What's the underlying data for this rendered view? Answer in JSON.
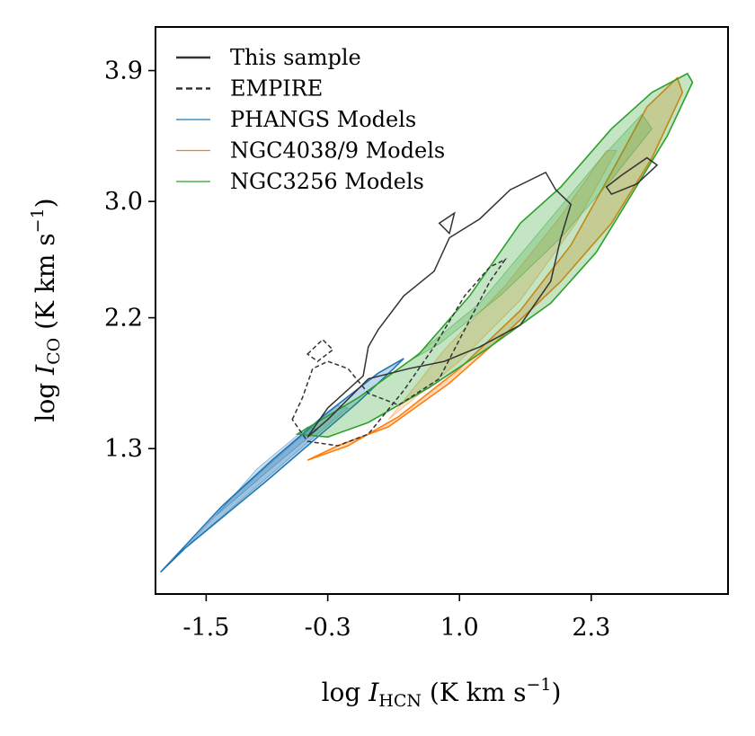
{
  "chart_data": {
    "type": "contour",
    "xlabel": "log I_HCN (K km s^-1)",
    "ylabel": "log I_CO (K km s^-1)",
    "xlabel_parts": {
      "prefix": "log ",
      "var": "I",
      "sub": "HCN",
      "suffix": " (K km s",
      "sup": "−1",
      "close": ")"
    },
    "ylabel_parts": {
      "prefix": "log ",
      "var": "I",
      "sub": "CO",
      "suffix": " (K km s",
      "sup": "−1",
      "close": ")"
    },
    "xlim": [
      -2.0,
      3.65
    ],
    "ylim": [
      0.3,
      4.2
    ],
    "xticks": [
      -1.5,
      -0.3,
      1.0,
      2.3
    ],
    "xtick_labels": [
      "-1.5",
      "-0.3",
      "1.0",
      "2.3"
    ],
    "yticks": [
      1.3,
      2.2,
      3.0,
      3.9
    ],
    "ytick_labels": [
      "1.3",
      "2.2",
      "3.0",
      "3.9"
    ],
    "legend_position": "top-left",
    "legend": [
      {
        "label": "This sample",
        "style": "solid",
        "color": "#333333"
      },
      {
        "label": "EMPIRE",
        "style": "dashed",
        "color": "#333333"
      },
      {
        "label": "PHANGS Models",
        "style": "solid",
        "color": "#1f77b4"
      },
      {
        "label": "NGC4038/9 Models",
        "style": "solid",
        "color": "#ff7f0e"
      },
      {
        "label": "NGC3256 Models",
        "style": "solid",
        "color": "#2ca02c"
      }
    ],
    "series": [
      {
        "name": "PHANGS Models",
        "kind": "filled-contour",
        "color": "#1f77b4",
        "outline": [
          [
            -1.95,
            0.45
          ],
          [
            -1.7,
            0.62
          ],
          [
            -1.3,
            0.85
          ],
          [
            -0.9,
            1.08
          ],
          [
            -0.4,
            1.38
          ],
          [
            0.0,
            1.62
          ],
          [
            0.35,
            1.85
          ],
          [
            0.45,
            1.92
          ],
          [
            0.2,
            1.82
          ],
          [
            -0.3,
            1.55
          ],
          [
            -0.85,
            1.22
          ],
          [
            -1.35,
            0.9
          ],
          [
            -1.75,
            0.6
          ],
          [
            -1.95,
            0.45
          ]
        ],
        "inner": [
          [
            [
              -1.7,
              0.62
            ],
            [
              -1.2,
              0.92
            ],
            [
              -0.6,
              1.28
            ],
            [
              -0.1,
              1.58
            ],
            [
              -0.2,
              1.6
            ],
            [
              -0.7,
              1.3
            ],
            [
              -1.25,
              0.96
            ],
            [
              -1.7,
              0.62
            ]
          ],
          [
            [
              -1.4,
              0.84
            ],
            [
              -0.9,
              1.14
            ],
            [
              -0.4,
              1.43
            ],
            [
              -0.5,
              1.45
            ],
            [
              -1.0,
              1.16
            ],
            [
              -1.4,
              0.84
            ]
          ]
        ]
      },
      {
        "name": "NGC4038/9 Models",
        "kind": "filled-contour",
        "color": "#ff7f0e",
        "outline": [
          [
            -0.5,
            1.22
          ],
          [
            -0.1,
            1.32
          ],
          [
            0.4,
            1.52
          ],
          [
            1.0,
            1.85
          ],
          [
            1.6,
            2.25
          ],
          [
            2.1,
            2.7
          ],
          [
            2.5,
            3.2
          ],
          [
            2.85,
            3.65
          ],
          [
            3.15,
            3.85
          ],
          [
            3.2,
            3.75
          ],
          [
            2.9,
            3.3
          ],
          [
            2.5,
            2.85
          ],
          [
            2.0,
            2.45
          ],
          [
            1.5,
            2.12
          ],
          [
            0.9,
            1.75
          ],
          [
            0.3,
            1.45
          ],
          [
            -0.2,
            1.32
          ],
          [
            -0.5,
            1.22
          ]
        ],
        "inner": [
          [
            [
              0.3,
              1.5
            ],
            [
              1.0,
              1.9
            ],
            [
              1.6,
              2.32
            ],
            [
              2.15,
              2.85
            ],
            [
              2.55,
              3.35
            ],
            [
              2.45,
              3.35
            ],
            [
              2.0,
              2.9
            ],
            [
              1.45,
              2.42
            ],
            [
              0.85,
              1.98
            ],
            [
              0.3,
              1.5
            ]
          ]
        ]
      },
      {
        "name": "NGC3256 Models",
        "kind": "filled-contour",
        "color": "#2ca02c",
        "outline": [
          [
            -0.6,
            1.4
          ],
          [
            0.0,
            1.65
          ],
          [
            0.6,
            1.95
          ],
          [
            1.1,
            2.35
          ],
          [
            1.6,
            2.85
          ],
          [
            2.0,
            3.1
          ],
          [
            2.5,
            3.5
          ],
          [
            2.9,
            3.75
          ],
          [
            3.25,
            3.88
          ],
          [
            3.3,
            3.82
          ],
          [
            3.05,
            3.45
          ],
          [
            2.7,
            3.05
          ],
          [
            2.35,
            2.65
          ],
          [
            1.9,
            2.3
          ],
          [
            1.3,
            2.0
          ],
          [
            0.7,
            1.72
          ],
          [
            0.1,
            1.48
          ],
          [
            -0.3,
            1.38
          ],
          [
            -0.6,
            1.4
          ]
        ],
        "inner": [
          [
            [
              0.5,
              1.9
            ],
            [
              1.2,
              2.3
            ],
            [
              1.8,
              2.8
            ],
            [
              2.4,
              3.3
            ],
            [
              2.8,
              3.6
            ],
            [
              2.9,
              3.5
            ],
            [
              2.5,
              3.15
            ],
            [
              2.0,
              2.75
            ],
            [
              1.4,
              2.35
            ],
            [
              0.8,
              2.02
            ],
            [
              0.5,
              1.9
            ]
          ]
        ]
      },
      {
        "name": "This sample",
        "kind": "contour-line",
        "style": "solid",
        "color": "#333333",
        "lines": [
          [
            [
              -0.5,
              1.38
            ],
            [
              -0.3,
              1.58
            ],
            [
              0.05,
              1.8
            ],
            [
              0.1,
              2.0
            ],
            [
              0.2,
              2.12
            ],
            [
              0.45,
              2.35
            ],
            [
              0.75,
              2.52
            ],
            [
              0.9,
              2.75
            ],
            [
              1.2,
              2.88
            ],
            [
              1.5,
              3.08
            ],
            [
              1.85,
              3.2
            ],
            [
              1.95,
              3.08
            ],
            [
              2.1,
              2.98
            ],
            [
              2.0,
              2.75
            ],
            [
              1.9,
              2.45
            ],
            [
              1.6,
              2.15
            ],
            [
              1.2,
              2.0
            ],
            [
              0.85,
              1.9
            ],
            [
              0.5,
              1.85
            ],
            [
              0.1,
              1.78
            ],
            [
              -0.3,
              1.5
            ],
            [
              -0.5,
              1.38
            ]
          ],
          [
            [
              0.8,
              2.85
            ],
            [
              0.95,
              2.92
            ],
            [
              0.9,
              2.78
            ],
            [
              0.8,
              2.85
            ]
          ],
          [
            [
              2.45,
              3.1
            ],
            [
              2.6,
              3.18
            ],
            [
              2.85,
              3.3
            ],
            [
              2.95,
              3.25
            ],
            [
              2.75,
              3.12
            ],
            [
              2.5,
              3.05
            ],
            [
              2.45,
              3.1
            ]
          ]
        ]
      },
      {
        "name": "EMPIRE",
        "kind": "contour-line",
        "style": "dashed",
        "color": "#333333",
        "lines": [
          [
            [
              -0.65,
              1.5
            ],
            [
              -0.55,
              1.65
            ],
            [
              -0.45,
              1.85
            ],
            [
              -0.3,
              1.9
            ],
            [
              -0.1,
              1.85
            ],
            [
              0.1,
              1.68
            ],
            [
              0.4,
              1.6
            ],
            [
              0.8,
              1.78
            ],
            [
              1.0,
              2.05
            ],
            [
              1.3,
              2.45
            ],
            [
              1.45,
              2.6
            ],
            [
              1.3,
              2.55
            ],
            [
              1.05,
              2.35
            ],
            [
              0.75,
              2.0
            ],
            [
              0.45,
              1.7
            ],
            [
              0.1,
              1.4
            ],
            [
              -0.2,
              1.32
            ],
            [
              -0.5,
              1.35
            ],
            [
              -0.65,
              1.5
            ]
          ],
          [
            [
              -0.5,
              1.95
            ],
            [
              -0.35,
              2.05
            ],
            [
              -0.25,
              1.98
            ],
            [
              -0.4,
              1.9
            ],
            [
              -0.5,
              1.95
            ]
          ]
        ]
      }
    ]
  }
}
